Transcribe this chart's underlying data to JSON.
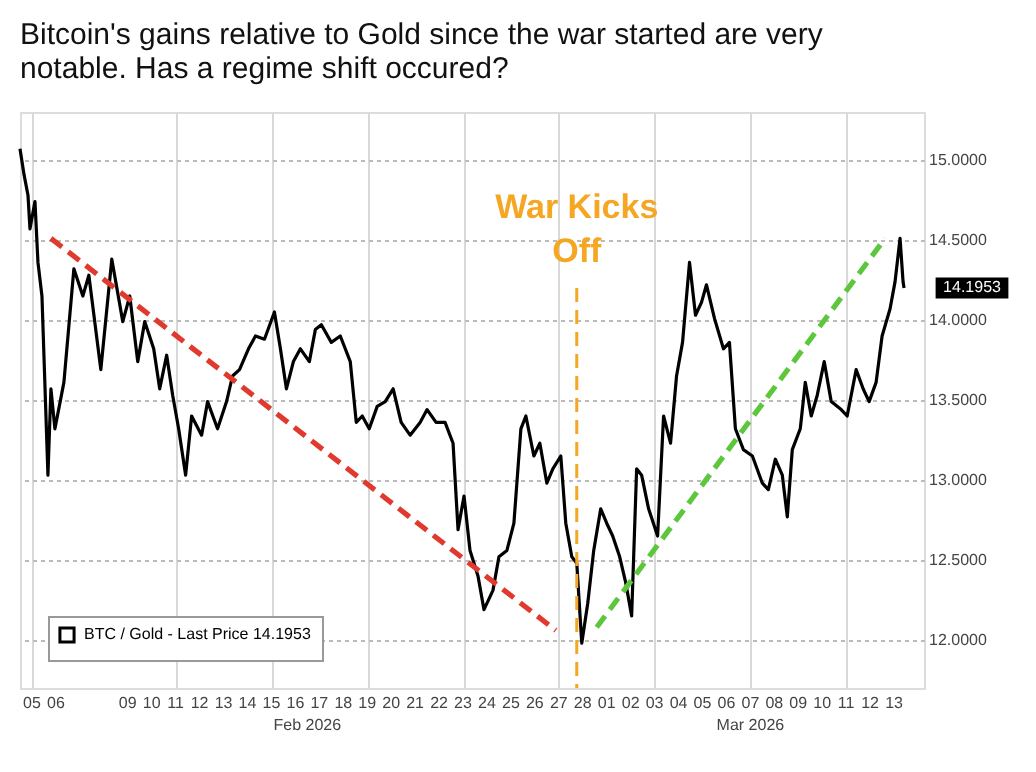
{
  "chart_data": {
    "type": "line",
    "title": "Bitcoin's gains relative to Gold since the war started are very notable. Has a regime shift occured?",
    "series": [
      {
        "name": "BTC / Gold - Last Price 14.1953",
        "type": "line",
        "color": "#000000",
        "x": [
          "2026-02-04T12:00",
          "2026-02-04T16:00",
          "2026-02-04T20:00",
          "2026-02-04T22:00",
          "2026-02-05T03:00",
          "2026-02-05T06:00",
          "2026-02-05T10:00",
          "2026-02-05T16:00",
          "2026-02-05T19:00",
          "2026-02-05T23:00",
          "2026-02-06T08:00",
          "2026-02-06T18:00",
          "2026-02-07T03:00",
          "2026-02-07T09:00",
          "2026-02-07T21:00",
          "2026-02-08T08:00",
          "2026-02-08T19:00",
          "2026-02-09T02:00",
          "2026-02-09T10:00",
          "2026-02-09T17:00",
          "2026-02-10T02:00",
          "2026-02-10T08:00",
          "2026-02-10T15:00",
          "2026-02-10T21:00",
          "2026-02-11T03:00",
          "2026-02-11T10:00",
          "2026-02-11T16:00",
          "2026-02-12T02:00",
          "2026-02-12T08:00",
          "2026-02-12T18:00",
          "2026-02-13T03:00",
          "2026-02-13T09:00",
          "2026-02-13T16:00",
          "2026-02-14T01:00",
          "2026-02-14T08:00",
          "2026-02-14T17:00",
          "2026-02-15T03:00",
          "2026-02-15T09:00",
          "2026-02-15T15:00",
          "2026-02-15T22:00",
          "2026-02-16T05:00",
          "2026-02-16T14:00",
          "2026-02-16T20:00",
          "2026-02-17T02:00",
          "2026-02-17T12:00",
          "2026-02-17T21:00",
          "2026-02-18T07:00",
          "2026-02-18T13:00",
          "2026-02-18T19:00",
          "2026-02-19T02:00",
          "2026-02-19T10:00",
          "2026-02-19T18:00",
          "2026-02-20T02:00",
          "2026-02-20T10:00",
          "2026-02-20T19:00",
          "2026-02-21T05:00",
          "2026-02-21T12:00",
          "2026-02-21T21:00",
          "2026-02-22T06:00",
          "2026-02-22T14:00",
          "2026-02-22T19:00",
          "2026-02-23T01:00",
          "2026-02-23T07:00",
          "2026-02-23T15:00",
          "2026-02-23T21:00",
          "2026-02-24T06:00",
          "2026-02-24T12:00",
          "2026-02-24T20:00",
          "2026-02-25T03:00",
          "2026-02-25T10:00",
          "2026-02-25T15:00",
          "2026-02-25T23:00",
          "2026-02-26T05:00",
          "2026-02-26T12:00",
          "2026-02-26T18:00",
          "2026-02-27T02:00",
          "2026-02-27T07:00",
          "2026-02-27T13:00",
          "2026-02-27T18:00",
          "2026-02-27T23:00",
          "2026-02-28T05:00",
          "2026-02-28T11:00",
          "2026-02-28T18:00",
          "2026-03-01T00:00",
          "2026-03-01T06:00",
          "2026-03-01T13:00",
          "2026-03-01T19:00",
          "2026-03-02T01:00",
          "2026-03-02T06:00",
          "2026-03-02T11:00",
          "2026-03-02T18:00",
          "2026-03-03T03:00",
          "2026-03-03T09:00",
          "2026-03-03T16:00",
          "2026-03-03T22:00",
          "2026-03-04T04:00",
          "2026-03-04T11:00",
          "2026-03-04T17:00",
          "2026-03-04T23:00",
          "2026-03-05T04:00",
          "2026-03-05T12:00",
          "2026-03-05T21:00",
          "2026-03-06T03:00",
          "2026-03-06T09:00",
          "2026-03-06T17:00",
          "2026-03-07T02:00",
          "2026-03-07T12:00",
          "2026-03-07T18:00",
          "2026-03-08T01:00",
          "2026-03-08T08:00",
          "2026-03-08T13:00",
          "2026-03-08T18:00",
          "2026-03-09T02:00",
          "2026-03-09T07:00",
          "2026-03-09T13:00",
          "2026-03-09T19:00",
          "2026-03-10T02:00",
          "2026-03-10T09:00",
          "2026-03-10T19:00",
          "2026-03-11T01:00",
          "2026-03-11T10:00",
          "2026-03-11T17:00",
          "2026-03-11T23:00",
          "2026-03-12T06:00",
          "2026-03-12T12:00",
          "2026-03-12T20:00",
          "2026-03-13T01:00",
          "2026-03-13T06:00",
          "2026-03-13T09:00",
          "2026-03-13T10:00"
        ],
        "values": [
          15.07,
          14.91,
          14.78,
          14.57,
          14.74,
          14.36,
          14.15,
          13.03,
          13.57,
          13.32,
          13.61,
          14.32,
          14.15,
          14.28,
          13.69,
          14.38,
          13.99,
          14.15,
          13.74,
          13.99,
          13.82,
          13.57,
          13.78,
          13.53,
          13.32,
          13.03,
          13.4,
          13.28,
          13.49,
          13.32,
          13.49,
          13.65,
          13.69,
          13.82,
          13.9,
          13.88,
          14.05,
          13.82,
          13.57,
          13.74,
          13.82,
          13.74,
          13.94,
          13.97,
          13.86,
          13.9,
          13.74,
          13.36,
          13.4,
          13.32,
          13.46,
          13.49,
          13.57,
          13.36,
          13.28,
          13.36,
          13.44,
          13.36,
          13.36,
          13.23,
          12.69,
          12.9,
          12.56,
          12.4,
          12.19,
          12.31,
          12.52,
          12.56,
          12.73,
          13.32,
          13.4,
          13.15,
          13.23,
          12.98,
          13.07,
          13.15,
          12.73,
          12.52,
          12.48,
          11.98,
          12.23,
          12.56,
          12.82,
          12.73,
          12.65,
          12.52,
          12.36,
          12.15,
          13.07,
          13.03,
          12.82,
          12.65,
          13.4,
          13.23,
          13.65,
          13.86,
          14.36,
          14.03,
          14.11,
          14.22,
          14.01,
          13.82,
          13.86,
          13.32,
          13.19,
          13.15,
          12.98,
          12.94,
          13.13,
          13.03,
          12.77,
          13.19,
          13.32,
          13.61,
          13.4,
          13.53,
          13.74,
          13.49,
          13.44,
          13.4,
          13.69,
          13.57,
          13.49,
          13.61,
          13.9,
          14.07,
          14.24,
          14.51,
          14.24,
          14.2
        ]
      },
      {
        "type": "line",
        "color": "#e03a2f",
        "line_style": "dashed",
        "x": [
          "2026-02-05T19:00",
          "2026-02-26T21:00"
        ],
        "values": [
          14.51,
          12.06
        ]
      },
      {
        "type": "line",
        "color": "#5cc63c",
        "line_style": "dashed",
        "x": [
          "2026-02-28T14:00",
          "2026-03-12T15:00"
        ],
        "values": [
          12.08,
          14.51
        ]
      }
    ],
    "xlim": [
      "2026-02-04T12:00",
      "2026-03-14T06:00"
    ],
    "xticks": [
      {
        "value": "2026-02-05",
        "label": "05"
      },
      {
        "value": "2026-02-06",
        "label": "06"
      },
      {
        "value": "2026-02-09",
        "label": "09"
      },
      {
        "value": "2026-02-10",
        "label": "10"
      },
      {
        "value": "2026-02-11",
        "label": "11"
      },
      {
        "value": "2026-02-12",
        "label": "12"
      },
      {
        "value": "2026-02-13",
        "label": "13"
      },
      {
        "value": "2026-02-14",
        "label": "14"
      },
      {
        "value": "2026-02-15",
        "label": "15"
      },
      {
        "value": "2026-02-16",
        "label": "16"
      },
      {
        "value": "2026-02-17",
        "label": "17"
      },
      {
        "value": "2026-02-18",
        "label": "18"
      },
      {
        "value": "2026-02-19",
        "label": "19"
      },
      {
        "value": "2026-02-20",
        "label": "20"
      },
      {
        "value": "2026-02-21",
        "label": "21"
      },
      {
        "value": "2026-02-22",
        "label": "22"
      },
      {
        "value": "2026-02-23",
        "label": "23"
      },
      {
        "value": "2026-02-24",
        "label": "24"
      },
      {
        "value": "2026-02-25",
        "label": "25"
      },
      {
        "value": "2026-02-26",
        "label": "26"
      },
      {
        "value": "2026-02-27",
        "label": "27"
      },
      {
        "value": "2026-02-28",
        "label": "28"
      },
      {
        "value": "2026-03-01",
        "label": "01"
      },
      {
        "value": "2026-03-02",
        "label": "02"
      },
      {
        "value": "2026-03-03",
        "label": "03"
      },
      {
        "value": "2026-03-04",
        "label": "04"
      },
      {
        "value": "2026-03-05",
        "label": "05"
      },
      {
        "value": "2026-03-06",
        "label": "06"
      },
      {
        "value": "2026-03-07",
        "label": "07"
      },
      {
        "value": "2026-03-08",
        "label": "08"
      },
      {
        "value": "2026-03-09",
        "label": "09"
      },
      {
        "value": "2026-03-10",
        "label": "10"
      },
      {
        "value": "2026-03-11",
        "label": "11"
      },
      {
        "value": "2026-03-12",
        "label": "12"
      },
      {
        "value": "2026-03-13",
        "label": "13"
      }
    ],
    "ylim": [
      11.7,
      15.3
    ],
    "yticks": [
      {
        "value": 12,
        "label": "12.0000"
      },
      {
        "value": 12.5,
        "label": "12.5000"
      },
      {
        "value": 13,
        "label": "13.0000"
      },
      {
        "value": 13.5,
        "label": "13.5000"
      },
      {
        "value": 14,
        "label": "14.0000"
      },
      {
        "value": 14.5,
        "label": "14.5000"
      },
      {
        "value": 15,
        "label": "15.0000"
      }
    ],
    "ref_lines": [
      {
        "axis": "x",
        "value": "2026-02-27T18:00",
        "label": "War Kicks\nOff",
        "color": "#f5a623",
        "line_style": "dashed"
      }
    ],
    "annotations": [
      "Feb 2026",
      "Mar 2026",
      "14.1953"
    ],
    "grid": true,
    "legend": "bottom left"
  }
}
